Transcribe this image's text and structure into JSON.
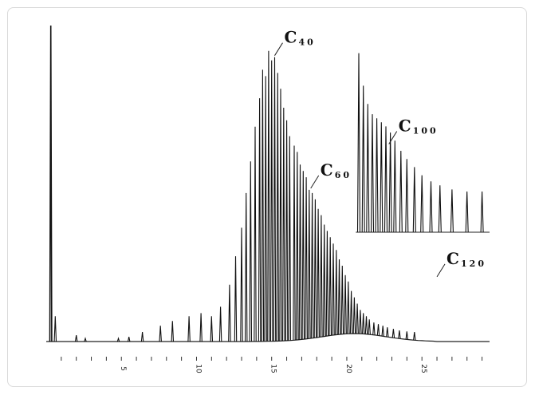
{
  "chart_data": {
    "type": "line",
    "title": "",
    "xlabel": "",
    "ylabel": "",
    "xlim": [
      0,
      29.5
    ],
    "ylim": [
      0,
      100
    ],
    "x_ticks": [
      5,
      10,
      15,
      20,
      25
    ],
    "tick_labels": [
      "5",
      "10",
      "15",
      "20",
      "25"
    ],
    "annotations": [
      {
        "label": "C",
        "sub": "40",
        "x": 15.2,
        "y": 92
      },
      {
        "label": "C",
        "sub": "60",
        "x": 17.6,
        "y": 50
      },
      {
        "label": "C",
        "sub": "100",
        "x": 22.8,
        "y": 64
      },
      {
        "label": "C",
        "sub": "120",
        "x": 26.0,
        "y": 22
      }
    ],
    "series": [
      {
        "comment": "main chromatogram: solvent peak near x=0.3, oligomer peaks C n",
        "peaks": [
          [
            0.3,
            100
          ],
          [
            0.6,
            8
          ],
          [
            2.0,
            2
          ],
          [
            2.6,
            1
          ],
          [
            4.8,
            1
          ],
          [
            5.5,
            1.5
          ],
          [
            6.4,
            3
          ],
          [
            7.6,
            5
          ],
          [
            8.4,
            6.5
          ],
          [
            9.5,
            8
          ],
          [
            10.3,
            9
          ],
          [
            11.0,
            8
          ],
          [
            11.6,
            11
          ],
          [
            12.2,
            18
          ],
          [
            12.6,
            27
          ],
          [
            13.0,
            36
          ],
          [
            13.3,
            47
          ],
          [
            13.6,
            57
          ],
          [
            13.9,
            68
          ],
          [
            14.2,
            77
          ],
          [
            14.4,
            86
          ],
          [
            14.6,
            84
          ],
          [
            14.8,
            92
          ],
          [
            15.0,
            89
          ],
          [
            15.2,
            90
          ],
          [
            15.4,
            85
          ],
          [
            15.6,
            80
          ],
          [
            15.8,
            74
          ],
          [
            16.0,
            70
          ],
          [
            16.2,
            65
          ],
          [
            16.5,
            62
          ],
          [
            16.7,
            60
          ],
          [
            16.9,
            56
          ],
          [
            17.1,
            54
          ],
          [
            17.3,
            52
          ],
          [
            17.5,
            48
          ],
          [
            17.7,
            47
          ],
          [
            17.9,
            45
          ],
          [
            18.1,
            42
          ],
          [
            18.3,
            40
          ],
          [
            18.5,
            37
          ],
          [
            18.7,
            35
          ],
          [
            18.9,
            33
          ],
          [
            19.1,
            31
          ],
          [
            19.3,
            29
          ],
          [
            19.5,
            26
          ],
          [
            19.7,
            24
          ],
          [
            19.9,
            21
          ],
          [
            20.1,
            19
          ],
          [
            20.3,
            16
          ],
          [
            20.5,
            14
          ],
          [
            20.7,
            12
          ],
          [
            20.9,
            10
          ],
          [
            21.1,
            9
          ],
          [
            21.3,
            8
          ],
          [
            21.5,
            7
          ],
          [
            21.8,
            6
          ],
          [
            22.1,
            5.5
          ],
          [
            22.4,
            5
          ],
          [
            22.7,
            4.5
          ],
          [
            23.1,
            4
          ],
          [
            23.5,
            3.5
          ],
          [
            24.0,
            3.2
          ],
          [
            24.5,
            3
          ]
        ]
      },
      {
        "comment": "inset expanded trace for high carbon numbers",
        "peaks": [
          [
            20.8,
            88
          ],
          [
            21.1,
            72
          ],
          [
            21.4,
            63
          ],
          [
            21.7,
            58
          ],
          [
            22.0,
            56
          ],
          [
            22.3,
            54
          ],
          [
            22.6,
            52
          ],
          [
            22.9,
            49
          ],
          [
            23.2,
            45
          ],
          [
            23.6,
            40
          ],
          [
            24.0,
            36
          ],
          [
            24.5,
            32
          ],
          [
            25.0,
            28
          ],
          [
            25.6,
            25
          ],
          [
            26.2,
            23
          ],
          [
            27.0,
            21
          ],
          [
            28.0,
            20
          ],
          [
            29.0,
            20
          ]
        ]
      }
    ]
  }
}
